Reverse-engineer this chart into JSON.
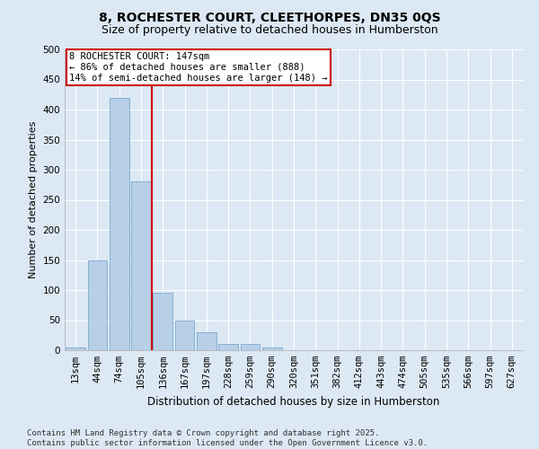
{
  "title1": "8, ROCHESTER COURT, CLEETHORPES, DN35 0QS",
  "title2": "Size of property relative to detached houses in Humberston",
  "xlabel": "Distribution of detached houses by size in Humberston",
  "ylabel": "Number of detached properties",
  "bar_labels": [
    "13sqm",
    "44sqm",
    "74sqm",
    "105sqm",
    "136sqm",
    "167sqm",
    "197sqm",
    "228sqm",
    "259sqm",
    "290sqm",
    "320sqm",
    "351sqm",
    "382sqm",
    "412sqm",
    "443sqm",
    "474sqm",
    "505sqm",
    "535sqm",
    "566sqm",
    "597sqm",
    "627sqm"
  ],
  "bar_values": [
    5,
    150,
    420,
    280,
    95,
    50,
    30,
    10,
    10,
    5,
    0,
    0,
    0,
    0,
    0,
    0,
    0,
    0,
    0,
    0,
    0
  ],
  "vline_x": 3.5,
  "bar_color": "#b8cfe8",
  "bar_edge_color": "#6a9ec4",
  "vline_color": "#cc0000",
  "annotation_box_color": "#cc0000",
  "annotation_text": "8 ROCHESTER COURT: 147sqm\n← 86% of detached houses are smaller (888)\n14% of semi-detached houses are larger (148) →",
  "footer": "Contains HM Land Registry data © Crown copyright and database right 2025.\nContains public sector information licensed under the Open Government Licence v3.0.",
  "ylim": [
    0,
    500
  ],
  "yticks": [
    0,
    50,
    100,
    150,
    200,
    250,
    300,
    350,
    400,
    450,
    500
  ],
  "background_color": "#dce8f4",
  "plot_bg_color": "#dce8f4",
  "grid_color": "#ffffff",
  "title1_fontsize": 10,
  "title2_fontsize": 9,
  "xlabel_fontsize": 8.5,
  "ylabel_fontsize": 8,
  "tick_fontsize": 7.5,
  "annotation_fontsize": 7.5,
  "footer_fontsize": 6.5
}
